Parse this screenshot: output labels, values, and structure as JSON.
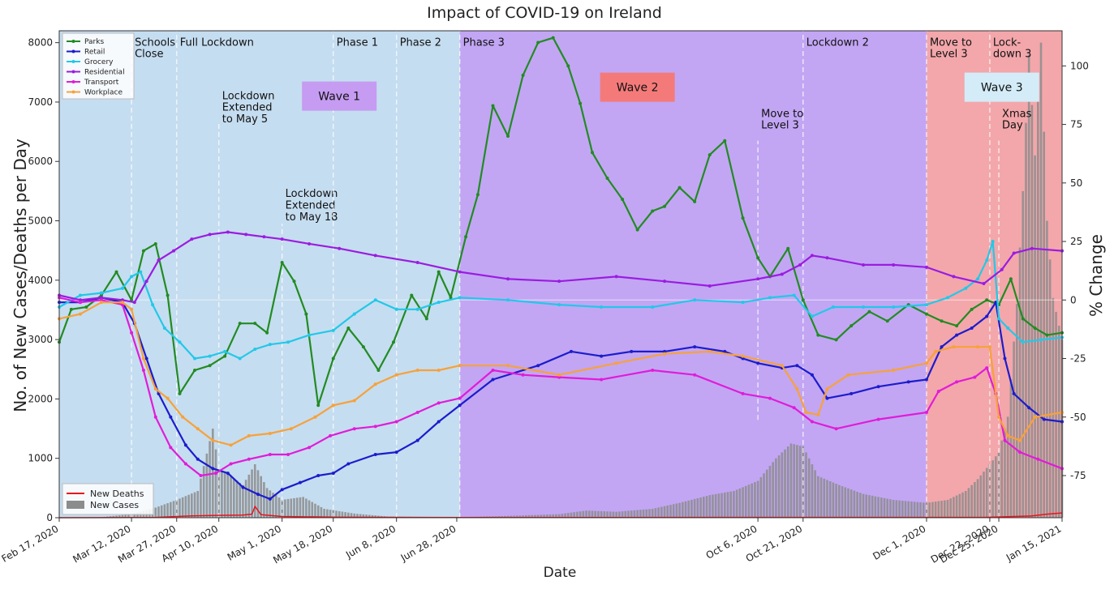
{
  "chart_data": {
    "type": "line",
    "title": "Impact of COVID-19 on Ireland",
    "xlabel": "Date",
    "ylabel_left": "No. of New Cases/Deaths per Day",
    "ylabel_right": "% Change",
    "ylim_left": [
      0,
      8200
    ],
    "ylim_right": [
      -93,
      115
    ],
    "yticks_left": [
      0,
      1000,
      2000,
      3000,
      4000,
      5000,
      6000,
      7000,
      8000
    ],
    "yticks_right": [
      -75,
      -50,
      -25,
      0,
      25,
      50,
      75,
      100
    ],
    "xticks": [
      "Feb 17, 2020",
      "Mar 12, 2020",
      "Mar 27, 2020",
      "Apr 10, 2020",
      "May 1, 2020",
      "May 18, 2020",
      "Jun 8, 2020",
      "Jun 28, 2020",
      "Oct 6, 2020",
      "Oct 21, 2020",
      "Dec 1, 2020",
      "Dec 22, 2020",
      "Dec 25, 2020",
      "Jan 15, 2021"
    ],
    "date_range": [
      "2020-02-17",
      "2021-01-15"
    ],
    "grid": false,
    "regions": [
      {
        "start": "2020-02-17",
        "end": "2020-06-29",
        "color": "#c5ddf0",
        "label": "Wave 1",
        "label_bg": "#c59cf2",
        "label_date": "2020-05-20",
        "label_count": 7100
      },
      {
        "start": "2020-06-29",
        "end": "2020-12-01",
        "color": "#c2a6f4",
        "label": "Wave 2",
        "label_bg": "#f47a7a",
        "label_date": "2020-08-27",
        "label_count": 7250
      },
      {
        "start": "2020-12-01",
        "end": "2021-01-15",
        "color": "#f3a7ab",
        "label": "Wave 3",
        "label_bg": "#d3ecf8",
        "label_date": "2020-12-26",
        "label_count": 7250
      }
    ],
    "events": [
      {
        "date": "2020-03-12",
        "label": "Schools\nClose",
        "label_count": 7950,
        "line_from": 0,
        "line_to": 8200
      },
      {
        "date": "2020-03-27",
        "label": "Full Lockdown",
        "label_count": 7950,
        "line_from": 0,
        "line_to": 8200
      },
      {
        "date": "2020-04-10",
        "label": "Lockdown\nExtended\nto May 5",
        "label_count": 7050,
        "line_from": 0,
        "line_to": 6650
      },
      {
        "date": "2020-05-01",
        "label": "Lockdown\nExtended\nto May 18",
        "label_count": 5400,
        "line_from": 0,
        "line_to": 4950
      },
      {
        "date": "2020-05-18",
        "label": "Phase 1",
        "label_count": 7950,
        "line_from": 0,
        "line_to": 8200
      },
      {
        "date": "2020-06-08",
        "label": "Phase 2",
        "label_count": 7950,
        "line_from": 0,
        "line_to": 8200
      },
      {
        "date": "2020-06-29",
        "label": "Phase 3",
        "label_count": 7950,
        "line_from": 0,
        "line_to": 8200
      },
      {
        "date": "2020-10-06",
        "label": "Move to\nLevel 3",
        "label_count": 6750,
        "line_from": 1650,
        "line_to": 6350
      },
      {
        "date": "2020-10-21",
        "label": "Lockdown 2",
        "label_count": 7950,
        "line_from": 0,
        "line_to": 8200
      },
      {
        "date": "2020-12-01",
        "label": "Move to\nLevel 3",
        "label_count": 7950,
        "line_from": 0,
        "line_to": 8200
      },
      {
        "date": "2020-12-22",
        "label": "Lock-\ndown 3",
        "label_count": 7950,
        "line_from": 0,
        "line_to": 8200
      },
      {
        "date": "2020-12-25",
        "label": "Xmas\nDay",
        "label_count": 6750,
        "line_from": 0,
        "line_to": 6350
      }
    ],
    "series": [
      {
        "name": "Parks",
        "axis": "right",
        "color": "#228b22",
        "marker": true,
        "dates": [
          "2020-02-17",
          "2020-02-21",
          "2020-02-26",
          "2020-03-02",
          "2020-03-07",
          "2020-03-12",
          "2020-03-16",
          "2020-03-20",
          "2020-03-24",
          "2020-03-28",
          "2020-04-02",
          "2020-04-07",
          "2020-04-12",
          "2020-04-17",
          "2020-04-22",
          "2020-04-26",
          "2020-05-01",
          "2020-05-05",
          "2020-05-09",
          "2020-05-13",
          "2020-05-18",
          "2020-05-23",
          "2020-05-28",
          "2020-06-02",
          "2020-06-07",
          "2020-06-13",
          "2020-06-18",
          "2020-06-22",
          "2020-06-26",
          "2020-07-01",
          "2020-07-05",
          "2020-07-10",
          "2020-07-15",
          "2020-07-20",
          "2020-07-25",
          "2020-07-30",
          "2020-08-04",
          "2020-08-08",
          "2020-08-12",
          "2020-08-17",
          "2020-08-22",
          "2020-08-27",
          "2020-09-01",
          "2020-09-05",
          "2020-09-10",
          "2020-09-15",
          "2020-09-20",
          "2020-09-25",
          "2020-10-01",
          "2020-10-06",
          "2020-10-10",
          "2020-10-16",
          "2020-10-21",
          "2020-10-26",
          "2020-11-01",
          "2020-11-06",
          "2020-11-12",
          "2020-11-18",
          "2020-11-25",
          "2020-12-01",
          "2020-12-06",
          "2020-12-11",
          "2020-12-16",
          "2020-12-21",
          "2020-12-25",
          "2020-12-29",
          "2021-01-02",
          "2021-01-06",
          "2021-01-10",
          "2021-01-15"
        ],
        "values": [
          -18,
          -4,
          -3,
          2,
          12,
          0,
          21,
          24,
          2,
          -40,
          -30,
          -28,
          -24,
          -10,
          -10,
          -14,
          16,
          8,
          -6,
          -45,
          -25,
          -12,
          -20,
          -30,
          -18,
          2,
          -8,
          12,
          1,
          27,
          45,
          83,
          70,
          96,
          110,
          112,
          100,
          84,
          63,
          52,
          43,
          30,
          38,
          40,
          48,
          42,
          62,
          68,
          35,
          18,
          10,
          22,
          0,
          -15,
          -17,
          -11,
          -5,
          -9,
          -2,
          -6,
          -9,
          -11,
          -4,
          0,
          -2,
          9,
          -8,
          -12,
          -15,
          -14
        ]
      },
      {
        "name": "Retail",
        "axis": "right",
        "color": "#1c1ccc",
        "marker": true,
        "dates": [
          "2020-02-17",
          "2020-02-24",
          "2020-03-02",
          "2020-03-09",
          "2020-03-13",
          "2020-03-17",
          "2020-03-21",
          "2020-03-25",
          "2020-03-30",
          "2020-04-03",
          "2020-04-08",
          "2020-04-13",
          "2020-04-18",
          "2020-04-23",
          "2020-04-27",
          "2020-05-01",
          "2020-05-07",
          "2020-05-13",
          "2020-05-18",
          "2020-05-23",
          "2020-06-01",
          "2020-06-08",
          "2020-06-15",
          "2020-06-22",
          "2020-06-29",
          "2020-07-10",
          "2020-07-25",
          "2020-08-05",
          "2020-08-15",
          "2020-08-25",
          "2020-09-05",
          "2020-09-15",
          "2020-09-25",
          "2020-10-01",
          "2020-10-06",
          "2020-10-14",
          "2020-10-19",
          "2020-10-24",
          "2020-10-29",
          "2020-11-06",
          "2020-11-15",
          "2020-11-25",
          "2020-12-01",
          "2020-12-06",
          "2020-12-11",
          "2020-12-16",
          "2020-12-21",
          "2020-12-24",
          "2020-12-27",
          "2020-12-30",
          "2021-01-04",
          "2021-01-09",
          "2021-01-15"
        ],
        "values": [
          -1,
          -1,
          1,
          -1,
          -10,
          -25,
          -40,
          -50,
          -62,
          -68,
          -72,
          -74,
          -80,
          -83,
          -85,
          -81,
          -78,
          -75,
          -74,
          -70,
          -66,
          -65,
          -60,
          -52,
          -45,
          -34,
          -28,
          -22,
          -24,
          -22,
          -22,
          -20,
          -22,
          -25,
          -27,
          -29,
          -28,
          -32,
          -42,
          -40,
          -37,
          -35,
          -34,
          -20,
          -15,
          -12,
          -7,
          -1,
          -25,
          -40,
          -46,
          -51,
          -52
        ]
      },
      {
        "name": "Grocery",
        "axis": "right",
        "color": "#22c8e8",
        "marker": true,
        "dates": [
          "2020-02-17",
          "2020-02-24",
          "2020-03-02",
          "2020-03-09",
          "2020-03-12",
          "2020-03-15",
          "2020-03-19",
          "2020-03-23",
          "2020-03-28",
          "2020-04-02",
          "2020-04-07",
          "2020-04-12",
          "2020-04-17",
          "2020-04-22",
          "2020-04-27",
          "2020-05-03",
          "2020-05-10",
          "2020-05-18",
          "2020-05-25",
          "2020-06-01",
          "2020-06-08",
          "2020-06-15",
          "2020-06-22",
          "2020-06-29",
          "2020-07-15",
          "2020-08-01",
          "2020-08-15",
          "2020-09-01",
          "2020-09-15",
          "2020-10-01",
          "2020-10-10",
          "2020-10-18",
          "2020-10-24",
          "2020-10-31",
          "2020-11-10",
          "2020-11-20",
          "2020-12-01",
          "2020-12-08",
          "2020-12-14",
          "2020-12-18",
          "2020-12-21",
          "2020-12-23",
          "2020-12-25",
          "2020-12-28",
          "2021-01-02",
          "2021-01-08",
          "2021-01-15"
        ],
        "values": [
          -3,
          2,
          3,
          5,
          10,
          12,
          -2,
          -12,
          -18,
          -25,
          -24,
          -22,
          -25,
          -21,
          -19,
          -18,
          -15,
          -13,
          -6,
          0,
          -4,
          -4,
          -1,
          1,
          0,
          -2,
          -3,
          -3,
          0,
          -1,
          1,
          2,
          -7,
          -3,
          -3,
          -3,
          -2,
          1,
          5,
          9,
          17,
          25,
          -8,
          -12,
          -18,
          -17,
          -16
        ]
      },
      {
        "name": "Residential",
        "axis": "right",
        "color": "#9b1ce0",
        "marker": true,
        "dates": [
          "2020-02-17",
          "2020-02-24",
          "2020-03-02",
          "2020-03-09",
          "2020-03-13",
          "2020-03-17",
          "2020-03-21",
          "2020-03-26",
          "2020-04-01",
          "2020-04-07",
          "2020-04-13",
          "2020-04-19",
          "2020-04-25",
          "2020-05-01",
          "2020-05-10",
          "2020-05-20",
          "2020-06-01",
          "2020-06-15",
          "2020-06-29",
          "2020-07-15",
          "2020-08-01",
          "2020-08-20",
          "2020-09-05",
          "2020-09-20",
          "2020-10-06",
          "2020-10-14",
          "2020-10-20",
          "2020-10-24",
          "2020-10-29",
          "2020-11-10",
          "2020-11-20",
          "2020-12-01",
          "2020-12-10",
          "2020-12-20",
          "2020-12-26",
          "2020-12-30",
          "2021-01-05",
          "2021-01-15"
        ],
        "values": [
          2,
          0,
          1,
          0,
          -1,
          8,
          17,
          21,
          26,
          28,
          29,
          28,
          27,
          26,
          24,
          22,
          19,
          16,
          12,
          9,
          8,
          10,
          8,
          6,
          9,
          11,
          15,
          19,
          18,
          15,
          15,
          14,
          10,
          7,
          13,
          20,
          22,
          21
        ]
      },
      {
        "name": "Transport",
        "axis": "right",
        "color": "#e01cd8",
        "marker": true,
        "dates": [
          "2020-02-17",
          "2020-02-24",
          "2020-03-02",
          "2020-03-09",
          "2020-03-12",
          "2020-03-16",
          "2020-03-20",
          "2020-03-25",
          "2020-03-30",
          "2020-04-04",
          "2020-04-09",
          "2020-04-14",
          "2020-04-20",
          "2020-04-27",
          "2020-05-03",
          "2020-05-10",
          "2020-05-17",
          "2020-05-25",
          "2020-06-01",
          "2020-06-08",
          "2020-06-15",
          "2020-06-22",
          "2020-06-29",
          "2020-07-10",
          "2020-07-20",
          "2020-08-01",
          "2020-08-15",
          "2020-09-01",
          "2020-09-15",
          "2020-10-01",
          "2020-10-10",
          "2020-10-18",
          "2020-10-24",
          "2020-11-01",
          "2020-11-15",
          "2020-12-01",
          "2020-12-05",
          "2020-12-11",
          "2020-12-17",
          "2020-12-21",
          "2020-12-24",
          "2020-12-27",
          "2021-01-01",
          "2021-01-07",
          "2021-01-15"
        ],
        "values": [
          1,
          -1,
          0,
          -2,
          -14,
          -30,
          -50,
          -63,
          -70,
          -75,
          -74,
          -70,
          -68,
          -66,
          -66,
          -63,
          -58,
          -55,
          -54,
          -52,
          -48,
          -44,
          -42,
          -30,
          -32,
          -33,
          -34,
          -30,
          -32,
          -40,
          -42,
          -46,
          -52,
          -55,
          -51,
          -48,
          -39,
          -35,
          -33,
          -29,
          -40,
          -60,
          -65,
          -68,
          -72
        ]
      },
      {
        "name": "Workplace",
        "axis": "right",
        "color": "#f7a13a",
        "marker": true,
        "dates": [
          "2020-02-17",
          "2020-02-24",
          "2020-03-02",
          "2020-03-09",
          "2020-03-12",
          "2020-03-16",
          "2020-03-20",
          "2020-03-24",
          "2020-03-29",
          "2020-04-03",
          "2020-04-08",
          "2020-04-14",
          "2020-04-20",
          "2020-04-27",
          "2020-05-04",
          "2020-05-12",
          "2020-05-18",
          "2020-05-25",
          "2020-06-01",
          "2020-06-08",
          "2020-06-15",
          "2020-06-22",
          "2020-06-29",
          "2020-07-15",
          "2020-08-01",
          "2020-08-20",
          "2020-09-05",
          "2020-09-20",
          "2020-10-01",
          "2020-10-14",
          "2020-10-19",
          "2020-10-22",
          "2020-10-26",
          "2020-10-29",
          "2020-11-05",
          "2020-11-20",
          "2020-12-01",
          "2020-12-04",
          "2020-12-10",
          "2020-12-18",
          "2020-12-22",
          "2020-12-25",
          "2020-12-28",
          "2021-01-01",
          "2021-01-06",
          "2021-01-15"
        ],
        "values": [
          -8,
          -6,
          -1,
          -1,
          -4,
          -25,
          -38,
          -42,
          -50,
          -55,
          -60,
          -62,
          -58,
          -57,
          -55,
          -50,
          -45,
          -43,
          -36,
          -32,
          -30,
          -30,
          -28,
          -28,
          -32,
          -27,
          -23,
          -22,
          -24,
          -28,
          -38,
          -48,
          -49,
          -38,
          -32,
          -30,
          -27,
          -22,
          -20,
          -20,
          -20,
          -50,
          -58,
          -60,
          -50,
          -48
        ]
      },
      {
        "name": "New Deaths",
        "axis": "left",
        "color": "#e8141c",
        "marker": false,
        "dates": [
          "2020-02-17",
          "2020-03-20",
          "2020-04-01",
          "2020-04-10",
          "2020-04-18",
          "2020-04-21",
          "2020-04-22",
          "2020-04-24",
          "2020-05-01",
          "2020-05-20",
          "2020-06-29",
          "2020-10-15",
          "2020-12-20",
          "2021-01-05",
          "2021-01-10",
          "2021-01-15"
        ],
        "values": [
          0,
          5,
          30,
          40,
          45,
          60,
          190,
          50,
          20,
          8,
          3,
          6,
          5,
          30,
          60,
          80
        ]
      },
      {
        "name": "New Cases",
        "axis": "left",
        "color": "#8c8c8c",
        "type": "bar",
        "dates": [
          "2020-02-20",
          "2020-03-01",
          "2020-03-12",
          "2020-03-20",
          "2020-03-27",
          "2020-04-03",
          "2020-04-08",
          "2020-04-10",
          "2020-04-14",
          "2020-04-18",
          "2020-04-22",
          "2020-04-26",
          "2020-05-01",
          "2020-05-08",
          "2020-05-15",
          "2020-05-25",
          "2020-06-05",
          "2020-06-15",
          "2020-06-29",
          "2020-07-15",
          "2020-08-01",
          "2020-08-10",
          "2020-08-20",
          "2020-09-01",
          "2020-09-10",
          "2020-09-20",
          "2020-09-28",
          "2020-10-06",
          "2020-10-12",
          "2020-10-17",
          "2020-10-21",
          "2020-10-26",
          "2020-11-02",
          "2020-11-10",
          "2020-11-20",
          "2020-12-01",
          "2020-12-08",
          "2020-12-14",
          "2020-12-18",
          "2020-12-22",
          "2020-12-25",
          "2020-12-28",
          "2020-12-31",
          "2021-01-02",
          "2021-01-04",
          "2021-01-06",
          "2021-01-08",
          "2021-01-10",
          "2021-01-12",
          "2021-01-15"
        ],
        "values": [
          0,
          5,
          60,
          170,
          300,
          450,
          1500,
          800,
          700,
          550,
          900,
          500,
          300,
          350,
          150,
          70,
          20,
          15,
          10,
          30,
          60,
          120,
          100,
          150,
          250,
          380,
          450,
          620,
          1000,
          1250,
          1200,
          700,
          550,
          400,
          300,
          250,
          300,
          450,
          650,
          900,
          1100,
          1700,
          3600,
          5500,
          7800,
          6100,
          8000,
          5000,
          3700,
          3000
        ]
      }
    ]
  }
}
